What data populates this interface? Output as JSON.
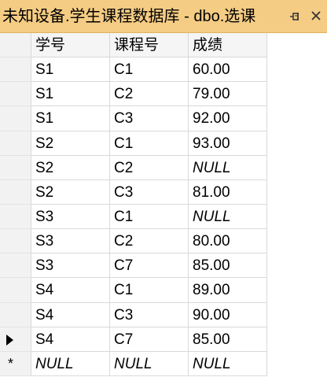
{
  "tab": {
    "title": "未知设备.学生课程数据库 - dbo.选课",
    "pin_icon": "pin-icon",
    "close_icon": "close-icon"
  },
  "grid": {
    "columns": [
      "学号",
      "课程号",
      "成绩"
    ],
    "rows": [
      [
        "S1",
        "C1",
        "60.00"
      ],
      [
        "S1",
        "C2",
        "79.00"
      ],
      [
        "S1",
        "C3",
        "92.00"
      ],
      [
        "S2",
        "C1",
        "93.00"
      ],
      [
        "S2",
        "C2",
        "NULL"
      ],
      [
        "S2",
        "C3",
        "81.00"
      ],
      [
        "S3",
        "C1",
        "NULL"
      ],
      [
        "S3",
        "C2",
        "80.00"
      ],
      [
        "S3",
        "C7",
        "85.00"
      ],
      [
        "S4",
        "C1",
        "89.00"
      ],
      [
        "S4",
        "C3",
        "90.00"
      ],
      [
        "S4",
        "C7",
        "85.00"
      ]
    ],
    "new_row": [
      "NULL",
      "NULL",
      "NULL"
    ],
    "new_row_marker": "*",
    "current_row_index": 11
  }
}
